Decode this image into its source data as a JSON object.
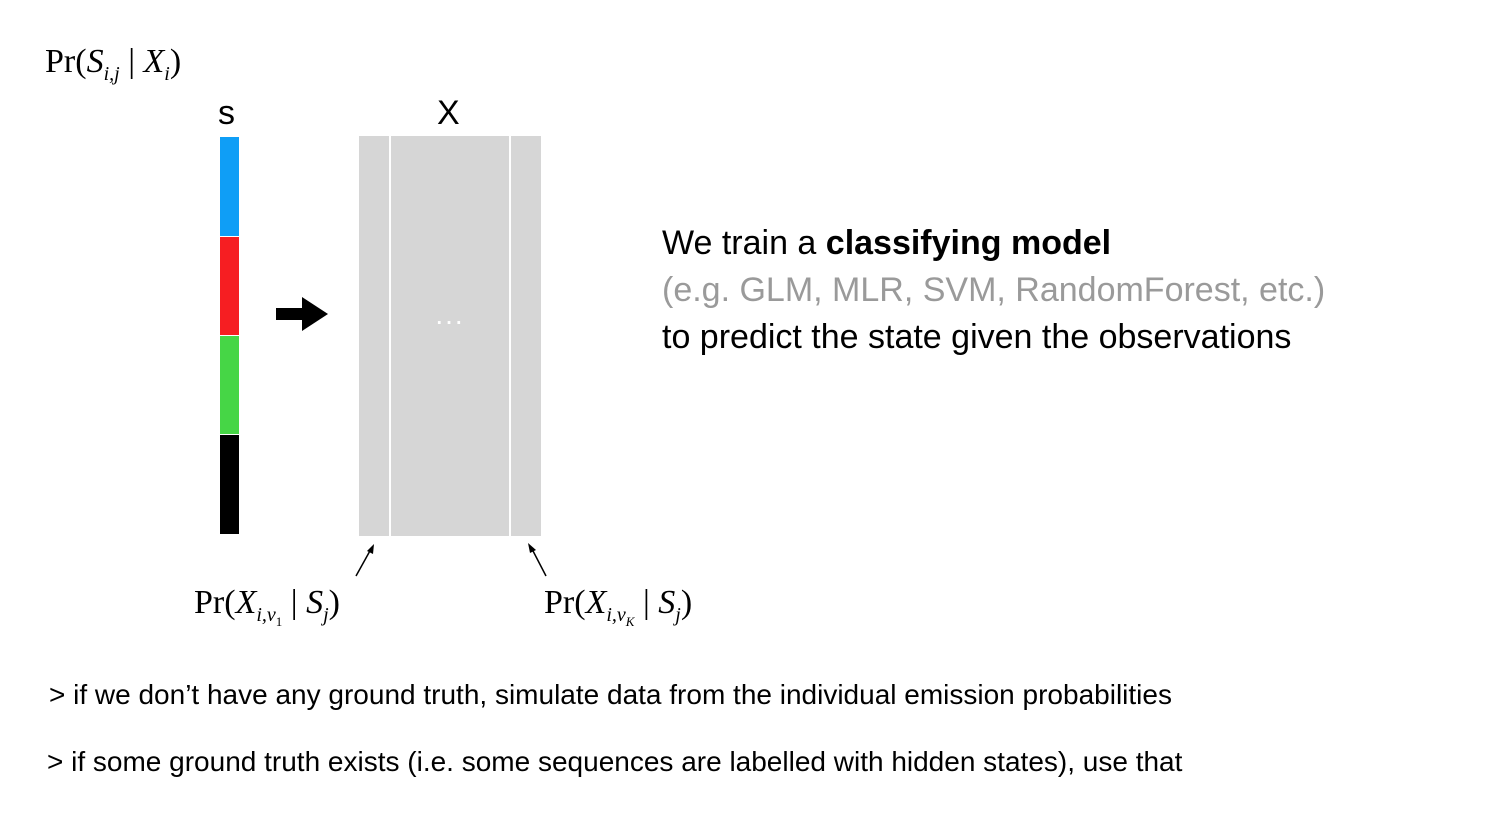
{
  "posterior_label": {
    "fn": "Pr(",
    "var": "S",
    "sub": "i,j",
    "sep": " | ",
    "cond": "X",
    "cond_sub": "i",
    "close": ")"
  },
  "state_column_label": "s",
  "observation_matrix_label": "X",
  "matrix_ellipsis": "...",
  "state_colors": [
    "#0f9ef6",
    "#f61e22",
    "#46d646",
    "#000000"
  ],
  "matrix_color": "#d6d6d6",
  "emission_first": {
    "fn": "Pr(",
    "var": "X",
    "sub": "i,v",
    "subsub": "1",
    "sep": " | ",
    "cond": "S",
    "cond_sub": "j",
    "close": ")"
  },
  "emission_last": {
    "fn": "Pr(",
    "var": "X",
    "sub": "i,v",
    "subsub": "K",
    "sep": " | ",
    "cond": "S",
    "cond_sub": "j",
    "close": ")"
  },
  "description": {
    "line1_prefix": "We train a ",
    "line1_bold": "classifying model",
    "line2": "(e.g. GLM, MLR, SVM, RandomForest, etc.)",
    "line3": "to predict the state given the observations"
  },
  "bullets": [
    "> if we don’t have any ground truth, simulate data from the individual emission probabilities",
    "> if some ground truth exists (i.e. some sequences are labelled with hidden states), use that"
  ]
}
